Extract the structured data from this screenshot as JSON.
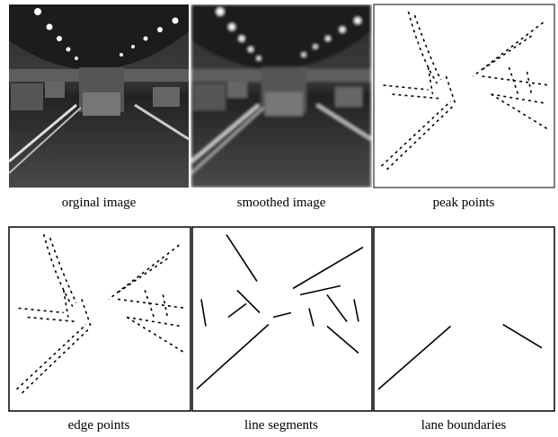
{
  "panels": [
    {
      "caption": "orginal image"
    },
    {
      "caption": "smoothed image"
    },
    {
      "caption": "peak points"
    },
    {
      "caption": "edge points"
    },
    {
      "caption": "line segments"
    },
    {
      "caption": "lane boundaries"
    }
  ]
}
